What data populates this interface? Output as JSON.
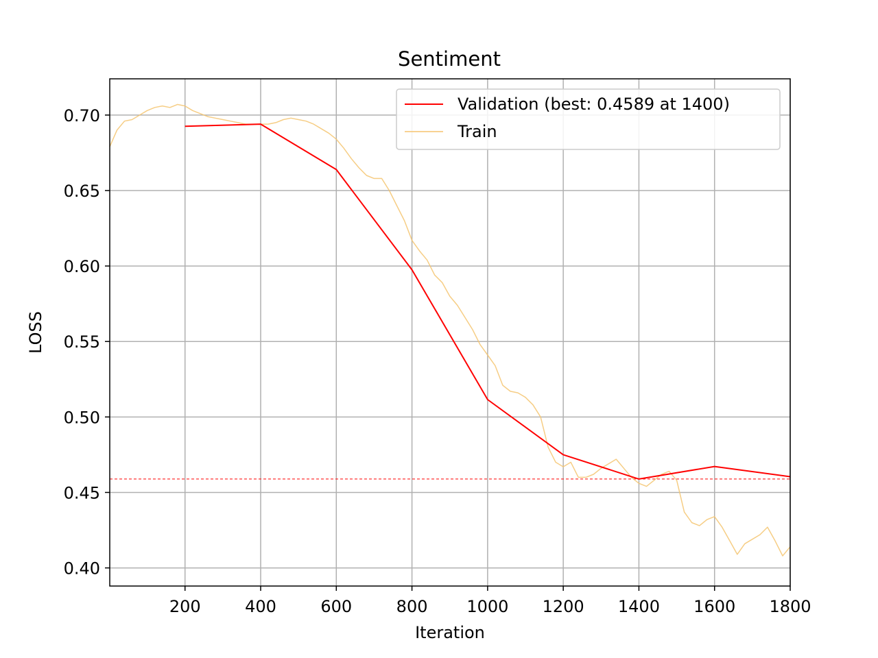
{
  "chart_data": {
    "type": "line",
    "title": "Sentiment",
    "xlabel": "Iteration",
    "ylabel": "LOSS",
    "xlim": [
      1,
      1800
    ],
    "ylim": [
      0.388,
      0.724
    ],
    "xticks": [
      200,
      400,
      600,
      800,
      1000,
      1200,
      1400,
      1600,
      1800
    ],
    "xtick_labels": [
      "200",
      "400",
      "600",
      "800",
      "1000",
      "1200",
      "1400",
      "1600",
      "1800"
    ],
    "yticks": [
      0.4,
      0.45,
      0.5,
      0.55,
      0.6,
      0.65,
      0.7
    ],
    "ytick_labels": [
      "0.40",
      "0.45",
      "0.50",
      "0.55",
      "0.60",
      "0.65",
      "0.70"
    ],
    "grid": true,
    "legend_position": "top-right",
    "series": [
      {
        "name": "Validation (best: 0.4589 at 1400)",
        "color": "#ff0000",
        "x": [
          200,
          400,
          600,
          800,
          1000,
          1200,
          1400,
          1600,
          1800
        ],
        "y": [
          0.6926,
          0.694,
          0.6639,
          0.5975,
          0.5115,
          0.475,
          0.4589,
          0.4672,
          0.4604
        ]
      },
      {
        "name": "Train",
        "color": "#f5c46e",
        "x": [
          1,
          20,
          40,
          60,
          80,
          100,
          120,
          140,
          160,
          180,
          200,
          220,
          240,
          260,
          280,
          300,
          320,
          340,
          360,
          380,
          400,
          420,
          440,
          460,
          480,
          500,
          520,
          540,
          560,
          580,
          600,
          620,
          640,
          660,
          680,
          700,
          720,
          740,
          760,
          780,
          800,
          820,
          840,
          860,
          880,
          900,
          920,
          940,
          960,
          980,
          1000,
          1020,
          1040,
          1060,
          1080,
          1100,
          1120,
          1140,
          1160,
          1180,
          1200,
          1220,
          1240,
          1260,
          1280,
          1300,
          1320,
          1340,
          1360,
          1380,
          1400,
          1420,
          1440,
          1460,
          1480,
          1500,
          1520,
          1540,
          1560,
          1580,
          1600,
          1620,
          1640,
          1660,
          1680,
          1700,
          1720,
          1740,
          1760,
          1780,
          1800
        ],
        "y": [
          0.679,
          0.69,
          0.696,
          0.697,
          0.7,
          0.703,
          0.705,
          0.706,
          0.705,
          0.707,
          0.706,
          0.703,
          0.701,
          0.699,
          0.698,
          0.697,
          0.696,
          0.695,
          0.694,
          0.694,
          0.694,
          0.694,
          0.695,
          0.697,
          0.698,
          0.697,
          0.696,
          0.694,
          0.691,
          0.688,
          0.684,
          0.678,
          0.671,
          0.665,
          0.66,
          0.658,
          0.658,
          0.65,
          0.64,
          0.63,
          0.617,
          0.61,
          0.604,
          0.594,
          0.589,
          0.58,
          0.574,
          0.566,
          0.558,
          0.548,
          0.541,
          0.534,
          0.521,
          0.517,
          0.516,
          0.513,
          0.508,
          0.5,
          0.48,
          0.47,
          0.467,
          0.47,
          0.46,
          0.46,
          0.462,
          0.466,
          0.469,
          0.472,
          0.466,
          0.46,
          0.456,
          0.454,
          0.458,
          0.462,
          0.464,
          0.458,
          0.437,
          0.43,
          0.428,
          0.432,
          0.434,
          0.427,
          0.418,
          0.409,
          0.416,
          0.419,
          0.422,
          0.427,
          0.418,
          0.408,
          0.414
        ]
      }
    ],
    "reference_line": {
      "y": 0.4589,
      "color": "#ff0000",
      "style": "dashed"
    }
  }
}
